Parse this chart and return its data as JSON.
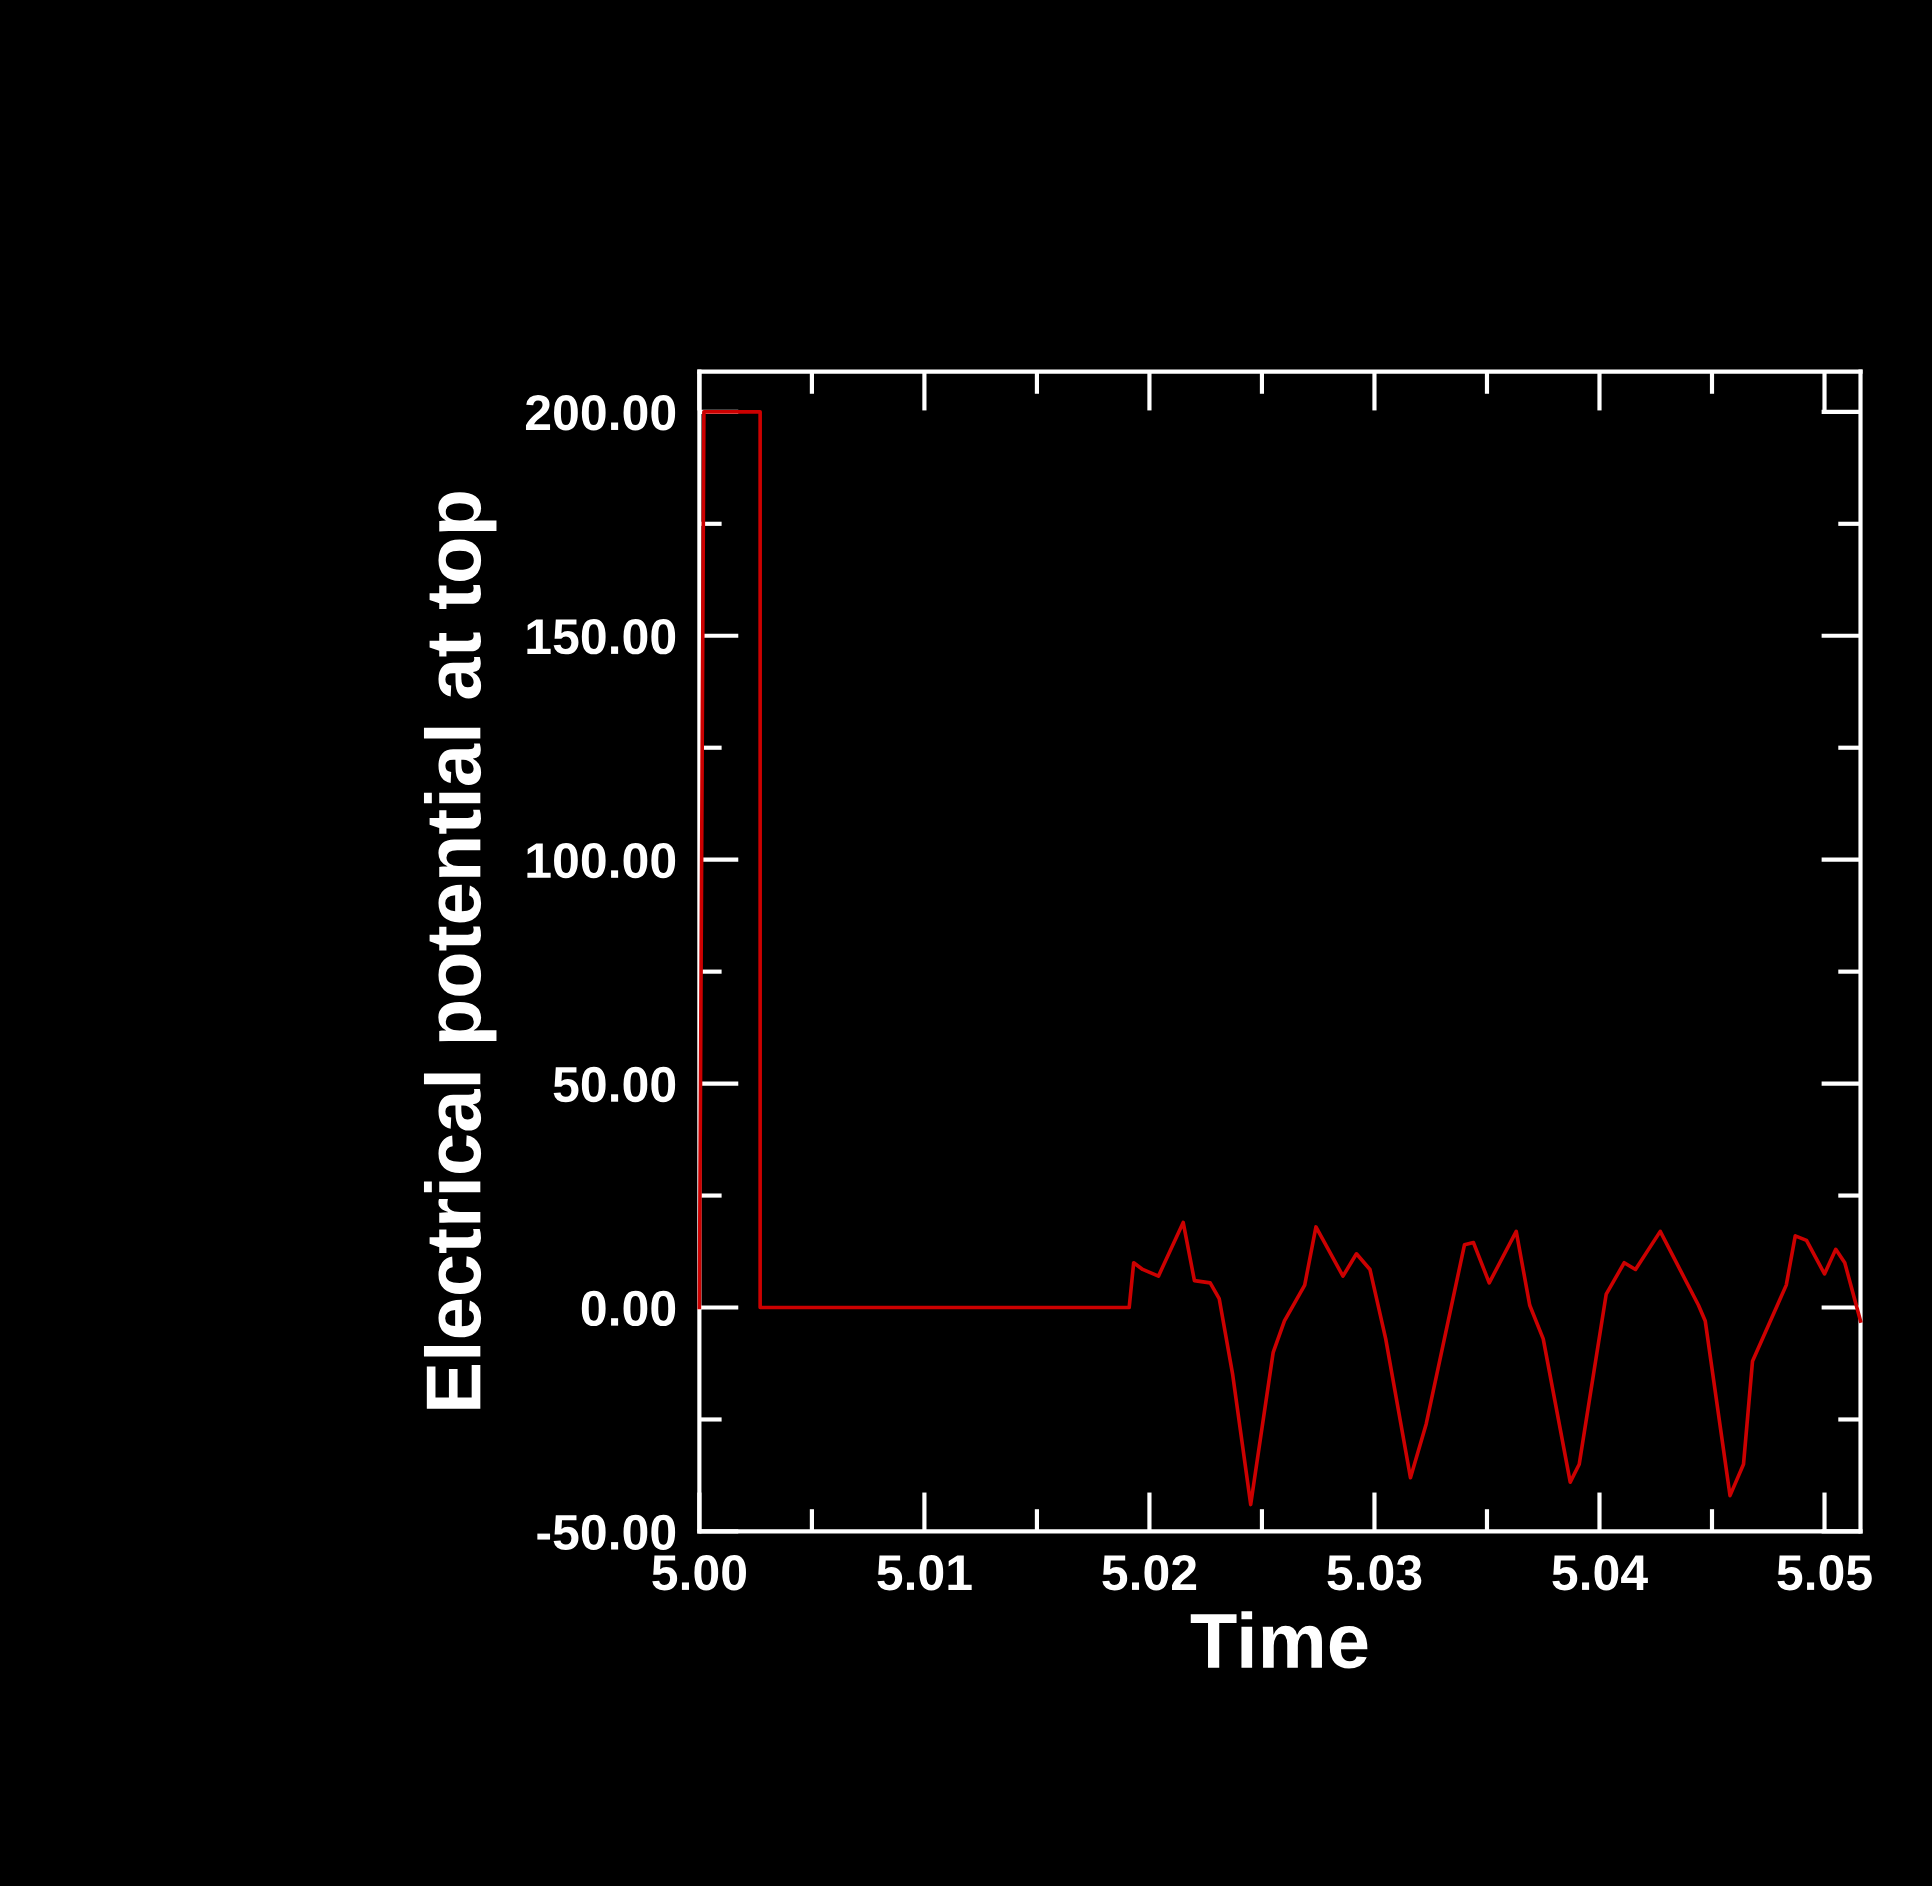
{
  "chart_data": {
    "type": "line",
    "xlabel": "Time",
    "ylabel": "Electrical potential at top",
    "x": [
      5.0,
      5.0002,
      5.0027,
      5.0027,
      5.0191,
      5.0193,
      5.0197,
      5.0204,
      5.0215,
      5.022,
      5.0227,
      5.0231,
      5.0237,
      5.0245,
      5.0255,
      5.026,
      5.0269,
      5.0274,
      5.0286,
      5.0292,
      5.0298,
      5.0305,
      5.0316,
      5.0323,
      5.034,
      5.0344,
      5.0351,
      5.0363,
      5.0369,
      5.0375,
      5.0387,
      5.0391,
      5.0403,
      5.0411,
      5.0416,
      5.0427,
      5.0444,
      5.0447,
      5.0458,
      5.0464,
      5.0468,
      5.0483,
      5.0487,
      5.0492,
      5.05,
      5.0505,
      5.0509,
      5.0516
    ],
    "series": [
      {
        "color": "#cc0000",
        "values": [
          0,
          200,
          200,
          0,
          0,
          10,
          8.5,
          7,
          19,
          6,
          5.5,
          2,
          -15,
          -44,
          -10,
          -3,
          5,
          18,
          7,
          12,
          8.5,
          -7,
          -38,
          -26,
          14,
          14.5,
          5.5,
          17,
          0.5,
          -7,
          -39,
          -35,
          3,
          10,
          8.5,
          17,
          0.5,
          -3,
          -42,
          -35,
          -12,
          5,
          16,
          15,
          7.5,
          13,
          10,
          -3
        ]
      }
    ],
    "xlim": [
      5.0,
      5.0516
    ],
    "ylim": [
      -50,
      209
    ],
    "xticks": [
      {
        "value": 5.0,
        "label": "5.00"
      },
      {
        "value": 5.005,
        "label": null
      },
      {
        "value": 5.01,
        "label": "5.01"
      },
      {
        "value": 5.015,
        "label": null
      },
      {
        "value": 5.02,
        "label": "5.02"
      },
      {
        "value": 5.025,
        "label": null
      },
      {
        "value": 5.03,
        "label": "5.03"
      },
      {
        "value": 5.035,
        "label": null
      },
      {
        "value": 5.04,
        "label": "5.04"
      },
      {
        "value": 5.045,
        "label": null
      },
      {
        "value": 5.05,
        "label": "5.05"
      }
    ],
    "yticks": [
      {
        "value": -50,
        "label": "-50.00"
      },
      {
        "value": -25,
        "label": null
      },
      {
        "value": 0,
        "label": "0.00"
      },
      {
        "value": 25,
        "label": null
      },
      {
        "value": 50,
        "label": "50.00"
      },
      {
        "value": 75,
        "label": null
      },
      {
        "value": 100,
        "label": "100.00"
      },
      {
        "value": 125,
        "label": null
      },
      {
        "value": 150,
        "label": "150.00"
      },
      {
        "value": 175,
        "label": null
      },
      {
        "value": 200,
        "label": "200.00"
      }
    ],
    "grid": false,
    "legend": false,
    "marker": "none",
    "line_style": "solid"
  }
}
